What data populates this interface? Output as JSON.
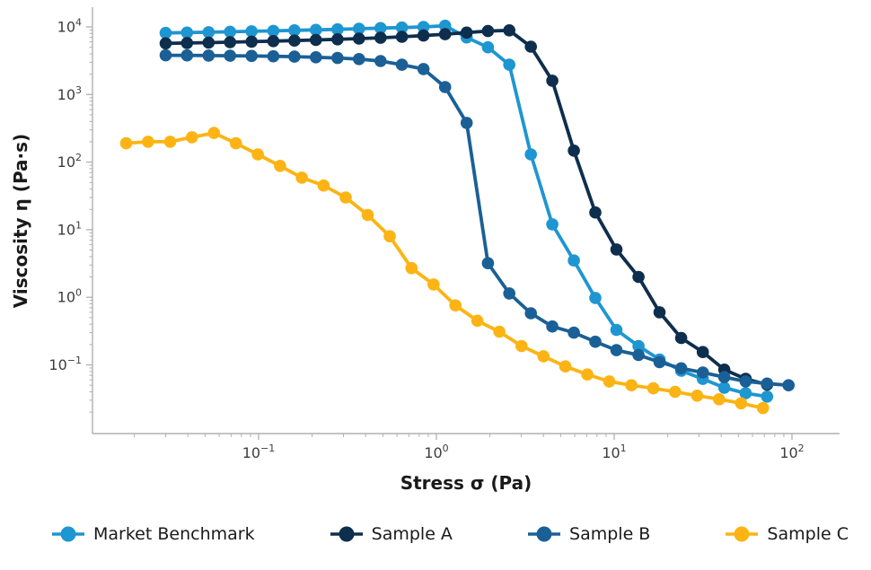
{
  "chart_data": {
    "type": "line",
    "title": "",
    "xlabel": "Stress σ (Pa)",
    "ylabel": "Viscosity η (Pa·s)",
    "x_scale": "log",
    "y_scale": "log",
    "xlim": [
      0.0116,
      185
    ],
    "ylim": [
      0.01,
      20000
    ],
    "grid": false,
    "legend_position": "bottom",
    "x_ticks_exponents": [
      -1,
      0,
      1,
      2
    ],
    "y_ticks_exponents": [
      4,
      3,
      2,
      1,
      0,
      -1
    ],
    "x_tick_labels": [
      "10⁻¹",
      "10⁰",
      "10¹",
      "10²"
    ],
    "y_tick_labels": [
      "10⁴",
      "10³",
      "10²",
      "10¹",
      "10⁰",
      "10⁻¹"
    ],
    "series": [
      {
        "name": "Market Benchmark",
        "color": "#1E96D1",
        "x": [
          0.03,
          0.0396,
          0.0523,
          0.0691,
          0.0913,
          0.121,
          0.159,
          0.21,
          0.278,
          0.367,
          0.485,
          0.64,
          0.846,
          1.12,
          1.48,
          1.95,
          2.57,
          3.4,
          4.49,
          5.93,
          7.83,
          10.3,
          13.7,
          18.0,
          23.8,
          31.5,
          41.6,
          54.9,
          72.5
        ],
        "y": [
          8150,
          8250,
          8350,
          8480,
          8600,
          8750,
          8900,
          9050,
          9200,
          9400,
          9600,
          9800,
          10000,
          10400,
          7000,
          5000,
          2760,
          130,
          12,
          3.5,
          0.98,
          0.33,
          0.19,
          0.12,
          0.082,
          0.062,
          0.046,
          0.038,
          0.034
        ]
      },
      {
        "name": "Sample A",
        "color": "#0E2E4D",
        "x": [
          0.03,
          0.0396,
          0.0523,
          0.0691,
          0.0913,
          0.121,
          0.159,
          0.21,
          0.278,
          0.367,
          0.485,
          0.64,
          0.846,
          1.12,
          1.48,
          1.95,
          2.57,
          3.4,
          4.49,
          5.93,
          7.83,
          10.3,
          13.7,
          18.0,
          23.8,
          31.5,
          41.6,
          54.9,
          72.5
        ],
        "y": [
          5710,
          5780,
          5860,
          5950,
          6050,
          6160,
          6280,
          6410,
          6560,
          6720,
          6900,
          7150,
          7450,
          7800,
          8250,
          8700,
          8900,
          5100,
          1600,
          148,
          18,
          5.1,
          2.0,
          0.6,
          0.25,
          0.155,
          0.085,
          0.062,
          0.051
        ]
      },
      {
        "name": "Sample B",
        "color": "#1A6096",
        "x": [
          0.03,
          0.0396,
          0.0523,
          0.0691,
          0.0913,
          0.121,
          0.159,
          0.21,
          0.278,
          0.367,
          0.485,
          0.64,
          0.846,
          1.12,
          1.48,
          1.95,
          2.57,
          3.4,
          4.49,
          5.93,
          7.83,
          10.3,
          13.7,
          18.0,
          23.8,
          31.5,
          41.6,
          54.9,
          72.5,
          95.7
        ],
        "y": [
          3800,
          3790,
          3770,
          3750,
          3720,
          3680,
          3630,
          3560,
          3470,
          3350,
          3130,
          2760,
          2380,
          1290,
          380,
          3.2,
          1.14,
          0.58,
          0.37,
          0.3,
          0.22,
          0.165,
          0.14,
          0.11,
          0.089,
          0.077,
          0.066,
          0.057,
          0.053,
          0.05
        ]
      },
      {
        "name": "Sample C",
        "color": "#FCB414",
        "x": [
          0.018,
          0.0239,
          0.0318,
          0.0422,
          0.0561,
          0.0745,
          0.099,
          0.132,
          0.175,
          0.232,
          0.309,
          0.411,
          0.546,
          0.725,
          0.964,
          1.28,
          1.7,
          2.26,
          3.01,
          4.0,
          5.31,
          7.06,
          9.38,
          12.5,
          16.6,
          22.0,
          29.3,
          38.9,
          51.7,
          68.7
        ],
        "y": [
          190,
          200,
          200,
          233,
          270,
          190,
          130,
          88,
          59,
          45,
          30,
          16.5,
          8.0,
          2.7,
          1.55,
          0.76,
          0.45,
          0.31,
          0.19,
          0.134,
          0.095,
          0.072,
          0.057,
          0.05,
          0.045,
          0.04,
          0.035,
          0.031,
          0.027,
          0.023
        ]
      }
    ]
  }
}
